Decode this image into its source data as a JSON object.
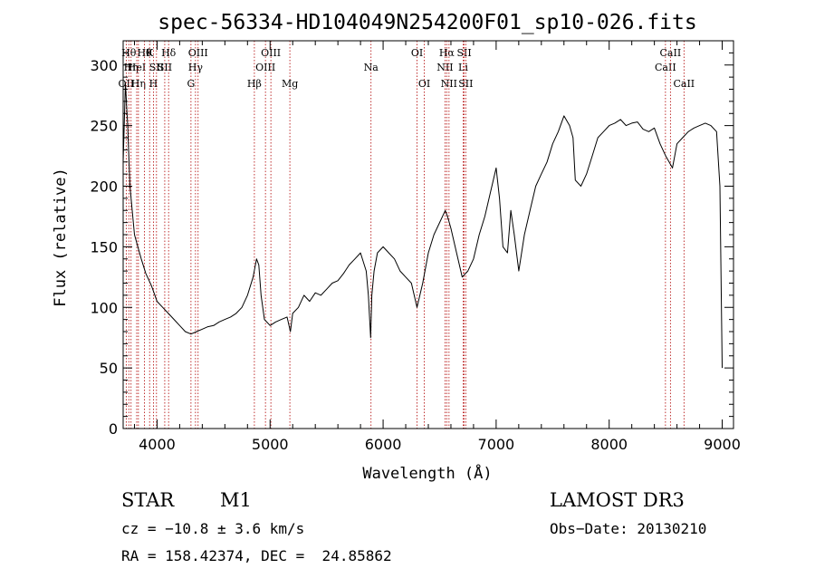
{
  "chart_data": {
    "type": "line",
    "title": "spec-56334-HD104049N254200F01_sp10-026.fits",
    "xlabel": "Wavelength (Å)",
    "ylabel": "Flux (relative)",
    "xlim": [
      3700,
      9100
    ],
    "ylim": [
      0,
      320
    ],
    "x_ticks": [
      4000,
      5000,
      6000,
      7000,
      8000,
      9000
    ],
    "y_ticks": [
      0,
      50,
      100,
      150,
      200,
      250,
      300
    ],
    "series": [
      {
        "x": [
          3700,
          3720,
          3740,
          3760,
          3780,
          3800,
          3830,
          3860,
          3900,
          3950,
          4000,
          4050,
          4100,
          4150,
          4200,
          4250,
          4300,
          4350,
          4400,
          4450,
          4500,
          4550,
          4600,
          4650,
          4700,
          4750,
          4800,
          4850,
          4880,
          4900,
          4920,
          4950,
          5000,
          5050,
          5100,
          5150,
          5180,
          5200,
          5250,
          5300,
          5350,
          5400,
          5450,
          5500,
          5550,
          5600,
          5650,
          5700,
          5750,
          5800,
          5850,
          5870,
          5890,
          5900,
          5920,
          5950,
          6000,
          6050,
          6100,
          6150,
          6200,
          6250,
          6300,
          6350,
          6400,
          6450,
          6500,
          6550,
          6570,
          6600,
          6650,
          6700,
          6750,
          6800,
          6850,
          6900,
          6950,
          7000,
          7030,
          7060,
          7100,
          7130,
          7160,
          7200,
          7250,
          7300,
          7350,
          7400,
          7450,
          7500,
          7550,
          7600,
          7650,
          7680,
          7700,
          7750,
          7800,
          7850,
          7900,
          7950,
          8000,
          8050,
          8100,
          8150,
          8200,
          8250,
          8300,
          8350,
          8400,
          8450,
          8500,
          8530,
          8560,
          8600,
          8650,
          8700,
          8750,
          8800,
          8850,
          8900,
          8950,
          8980,
          9000
        ],
        "y": [
          220,
          285,
          250,
          200,
          180,
          160,
          150,
          140,
          128,
          118,
          105,
          100,
          95,
          90,
          85,
          80,
          78,
          80,
          82,
          84,
          85,
          88,
          90,
          92,
          95,
          100,
          110,
          125,
          140,
          135,
          110,
          90,
          85,
          88,
          90,
          92,
          80,
          95,
          100,
          110,
          105,
          112,
          110,
          115,
          120,
          122,
          128,
          135,
          140,
          145,
          130,
          110,
          75,
          110,
          130,
          145,
          150,
          145,
          140,
          130,
          125,
          120,
          100,
          120,
          145,
          160,
          170,
          180,
          175,
          165,
          145,
          125,
          130,
          140,
          160,
          175,
          195,
          215,
          190,
          150,
          145,
          180,
          160,
          130,
          160,
          180,
          200,
          210,
          220,
          235,
          245,
          258,
          250,
          240,
          205,
          200,
          210,
          225,
          240,
          245,
          250,
          252,
          255,
          250,
          252,
          253,
          247,
          245,
          248,
          235,
          225,
          220,
          215,
          235,
          240,
          245,
          248,
          250,
          252,
          250,
          245,
          200,
          50
        ]
      }
    ],
    "line_markers": [
      {
        "x": 3727,
        "label": "OII",
        "row": 3
      },
      {
        "x": 3750,
        "label": "Hθ",
        "row": 1
      },
      {
        "x": 3770,
        "label": "Hη",
        "row": 2
      },
      {
        "x": 3820,
        "label": "HeI",
        "row": 2
      },
      {
        "x": 3835,
        "label": "Hη",
        "row": 3
      },
      {
        "x": 3889,
        "label": "Hθ",
        "row": 1
      },
      {
        "x": 3934,
        "label": "K",
        "row": 1
      },
      {
        "x": 3968,
        "label": "H",
        "row": 3
      },
      {
        "x": 3995,
        "label": "SII",
        "row": 2
      },
      {
        "x": 4068,
        "label": "SII",
        "row": 2
      },
      {
        "x": 4102,
        "label": "Hδ",
        "row": 1
      },
      {
        "x": 4300,
        "label": "G",
        "row": 3
      },
      {
        "x": 4340,
        "label": "Hγ",
        "row": 2
      },
      {
        "x": 4363,
        "label": "OIII",
        "row": 1
      },
      {
        "x": 4861,
        "label": "Hβ",
        "row": 3
      },
      {
        "x": 4959,
        "label": "OIII",
        "row": 2
      },
      {
        "x": 5007,
        "label": "OIII",
        "row": 1
      },
      {
        "x": 5175,
        "label": "Mg",
        "row": 3
      },
      {
        "x": 5893,
        "label": "Na",
        "row": 2
      },
      {
        "x": 6300,
        "label": "OI",
        "row": 1
      },
      {
        "x": 6364,
        "label": "OI",
        "row": 3
      },
      {
        "x": 6548,
        "label": "NII",
        "row": 2
      },
      {
        "x": 6563,
        "label": "Hα",
        "row": 1
      },
      {
        "x": 6583,
        "label": "NII",
        "row": 3
      },
      {
        "x": 6708,
        "label": "Li",
        "row": 2
      },
      {
        "x": 6717,
        "label": "SII",
        "row": 1
      },
      {
        "x": 6731,
        "label": "SII",
        "row": 3
      },
      {
        "x": 8498,
        "label": "CaII",
        "row": 2
      },
      {
        "x": 8542,
        "label": "CaII",
        "row": 1
      },
      {
        "x": 8662,
        "label": "CaII",
        "row": 3
      }
    ]
  },
  "info": {
    "object_class": "STAR",
    "subclass": "M1",
    "survey": "LAMOST DR3",
    "cz": "cz = −10.8 ± 3.6 km/s",
    "obs_date": "Obs−Date: 20130210",
    "coords": "RA = 158.42374, DEC =  24.85862"
  }
}
